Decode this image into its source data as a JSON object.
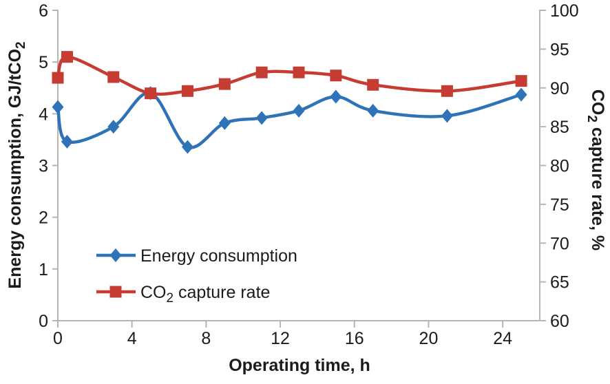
{
  "figure": {
    "background": "#ffffff",
    "text_color": "#1d1b1a",
    "axis_line_color": "#b9b4af"
  },
  "chart_data": {
    "type": "line",
    "x": [
      0,
      0.5,
      3,
      5,
      7,
      9,
      11,
      13,
      15,
      17,
      21,
      25
    ],
    "series": [
      {
        "name": "Energy consumption",
        "axis": "left",
        "color": "#2e72b8",
        "marker": "diamond",
        "values": [
          4.13,
          3.46,
          3.75,
          4.4,
          3.36,
          3.82,
          3.92,
          4.06,
          4.33,
          4.06,
          3.96,
          4.37
        ]
      },
      {
        "name": "CO₂ capture rate",
        "axis": "right",
        "color": "#c63b32",
        "marker": "square",
        "values": [
          91.3,
          94.0,
          91.4,
          89.3,
          89.6,
          90.5,
          92.0,
          92.0,
          91.6,
          90.4,
          89.6,
          90.9
        ]
      }
    ],
    "xlabel": "Operating time, h",
    "ylabel_left": "Energy consumption, GJ/tCO₂",
    "ylabel_right": "CO₂ capture rate, %",
    "xlim": [
      0,
      26
    ],
    "x_ticks": [
      0,
      4,
      8,
      12,
      16,
      20,
      24
    ],
    "ylim_left": [
      0,
      6
    ],
    "left_ticks": [
      0,
      1,
      2,
      3,
      4,
      5,
      6
    ],
    "ylim_right": [
      60,
      100
    ],
    "right_ticks": [
      60,
      65,
      70,
      75,
      80,
      85,
      90,
      95,
      100
    ],
    "grid": false,
    "legend_position": "inside-lower-left"
  },
  "labels": {
    "left_axis_pre": "Energy consumption, GJ/tCO",
    "left_axis_sub": "2",
    "left_axis_post": "",
    "right_axis_pre": "CO",
    "right_axis_sub": "2",
    "right_axis_post": " capture rate, %",
    "x_axis": "Operating time, h"
  },
  "legend": {
    "items": [
      {
        "pre": "Energy consumption",
        "sub": "",
        "post": ""
      },
      {
        "pre": "CO",
        "sub": "2",
        "post": " capture rate"
      }
    ]
  }
}
